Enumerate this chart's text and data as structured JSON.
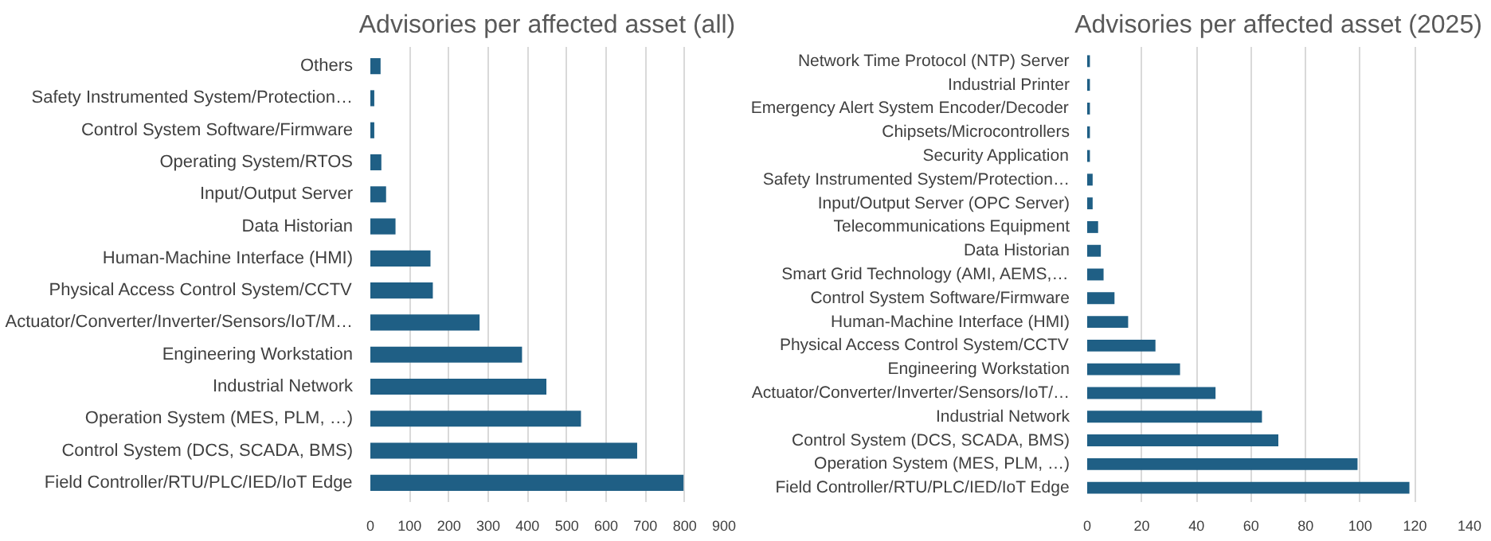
{
  "chart_data": [
    {
      "type": "bar",
      "orientation": "horizontal",
      "title": "Advisories per affected asset (all)",
      "color": "#1f5f85",
      "grid": "x",
      "categories": [
        "Others",
        "Safety Instrumented System/Protection…",
        "Control System Software/Firmware",
        "Operating System/RTOS",
        "Input/Output Server",
        "Data Historian",
        "Human-Machine Interface (HMI)",
        "Physical Access Control System/CCTV",
        "Actuator/Converter/Inverter/Sensors/IoT/M…",
        "Engineering Workstation",
        "Industrial Network",
        "Operation System (MES, PLM, …)",
        "Control System (DCS, SCADA, BMS)",
        "Field Controller/RTU/PLC/IED/IoT Edge"
      ],
      "values": [
        26,
        10,
        10,
        28,
        40,
        64,
        153,
        159,
        278,
        386,
        448,
        536,
        679,
        797
      ],
      "xlim": [
        0,
        900
      ],
      "xticks": [
        0,
        100,
        200,
        300,
        400,
        500,
        600,
        700,
        800,
        900
      ]
    },
    {
      "type": "bar",
      "orientation": "horizontal",
      "title": "Advisories per affected asset (2025)",
      "color": "#1f5f85",
      "grid": "x",
      "categories": [
        "Network Time Protocol (NTP) Server",
        "Industrial Printer",
        "Emergency Alert System Encoder/Decoder",
        "Chipsets/Microcontrollers",
        "Security Application",
        "Safety Instrumented System/Protection…",
        "Input/Output Server (OPC Server)",
        "Telecommunications Equipment",
        "Data Historian",
        "Smart Grid Technology (AMI, AEMS,…",
        "Control System Software/Firmware",
        "Human-Machine Interface (HMI)",
        "Physical Access Control System/CCTV",
        "Engineering Workstation",
        "Actuator/Converter/Inverter/Sensors/IoT/…",
        "Industrial Network",
        "Control System (DCS, SCADA, BMS)",
        "Operation System (MES, PLM, …)",
        "Field Controller/RTU/PLC/IED/IoT Edge"
      ],
      "values": [
        1,
        1,
        1,
        1,
        1,
        2,
        2,
        4,
        5,
        6,
        10,
        15,
        25,
        34,
        47,
        64,
        70,
        99,
        118
      ],
      "xlim": [
        0,
        140
      ],
      "xticks": [
        0,
        20,
        40,
        60,
        80,
        100,
        120,
        140
      ]
    }
  ]
}
